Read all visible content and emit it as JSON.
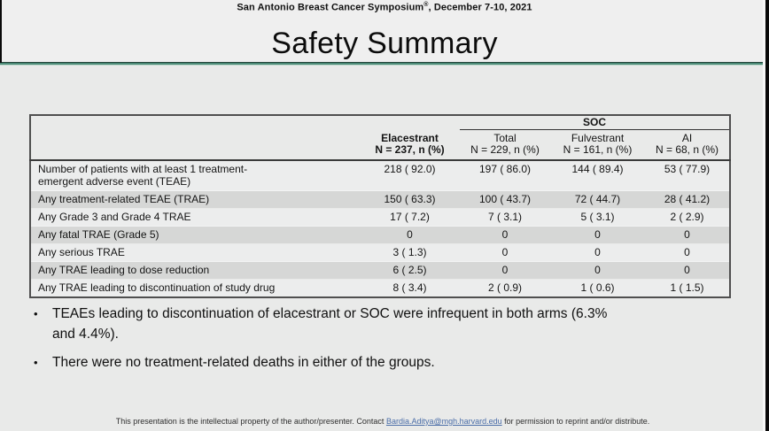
{
  "slide": {
    "conference": {
      "pre": "San Antonio Breast Cancer Symposium",
      "sup": "®",
      "post": ", December 7-10, 2021"
    },
    "title": "Safety Summary",
    "accent_color": "#4c8b77"
  },
  "table": {
    "soc_group_label": "SOC",
    "columns": [
      {
        "label": "Elacestrant",
        "sub": "N = 237, n (%)"
      },
      {
        "label": "Total",
        "sub": "N = 229, n (%)"
      },
      {
        "label": "Fulvestrant",
        "sub": "N = 161, n (%)"
      },
      {
        "label": "AI",
        "sub": "N = 68, n (%)"
      }
    ],
    "rows": [
      {
        "label": "Number of patients with at least 1 treatment-emergent adverse event (TEAE)",
        "values": [
          "218 ( 92.0)",
          "197 ( 86.0)",
          "144 ( 89.4)",
          "53 ( 77.9)"
        ]
      },
      {
        "label": "Any treatment-related TEAE (TRAE)",
        "values": [
          "150 ( 63.3)",
          "100 ( 43.7)",
          "72 ( 44.7)",
          "28 ( 41.2)"
        ]
      },
      {
        "label": "Any Grade 3 and Grade 4 TRAE",
        "values": [
          "17 ( 7.2)",
          "7 ( 3.1)",
          "5 ( 3.1)",
          "2 ( 2.9)"
        ]
      },
      {
        "label": "Any fatal TRAE (Grade 5)",
        "values": [
          "0",
          "0",
          "0",
          "0"
        ]
      },
      {
        "label": "Any serious TRAE",
        "values": [
          "3 ( 1.3)",
          "0",
          "0",
          "0"
        ]
      },
      {
        "label": "Any TRAE leading to dose reduction",
        "values": [
          "6 ( 2.5)",
          "0",
          "0",
          "0"
        ]
      },
      {
        "label": "Any TRAE leading to discontinuation of study drug",
        "values": [
          "8 ( 3.4)",
          "2 ( 0.9)",
          "1 ( 0.6)",
          "1 ( 1.5)"
        ]
      }
    ]
  },
  "bullets": [
    {
      "text": "TEAEs leading to discontinuation of elacestrant or SOC were infrequent in both arms (6.3% and 4.4%)."
    },
    {
      "text": "There were no treatment-related deaths in either of the groups."
    }
  ],
  "footer": {
    "pre": "This presentation is the intellectual property of the author/presenter. Contact ",
    "link": "Bardia.Aditya@mgh.harvard.edu",
    "post": " for permission to reprint and/or distribute."
  }
}
